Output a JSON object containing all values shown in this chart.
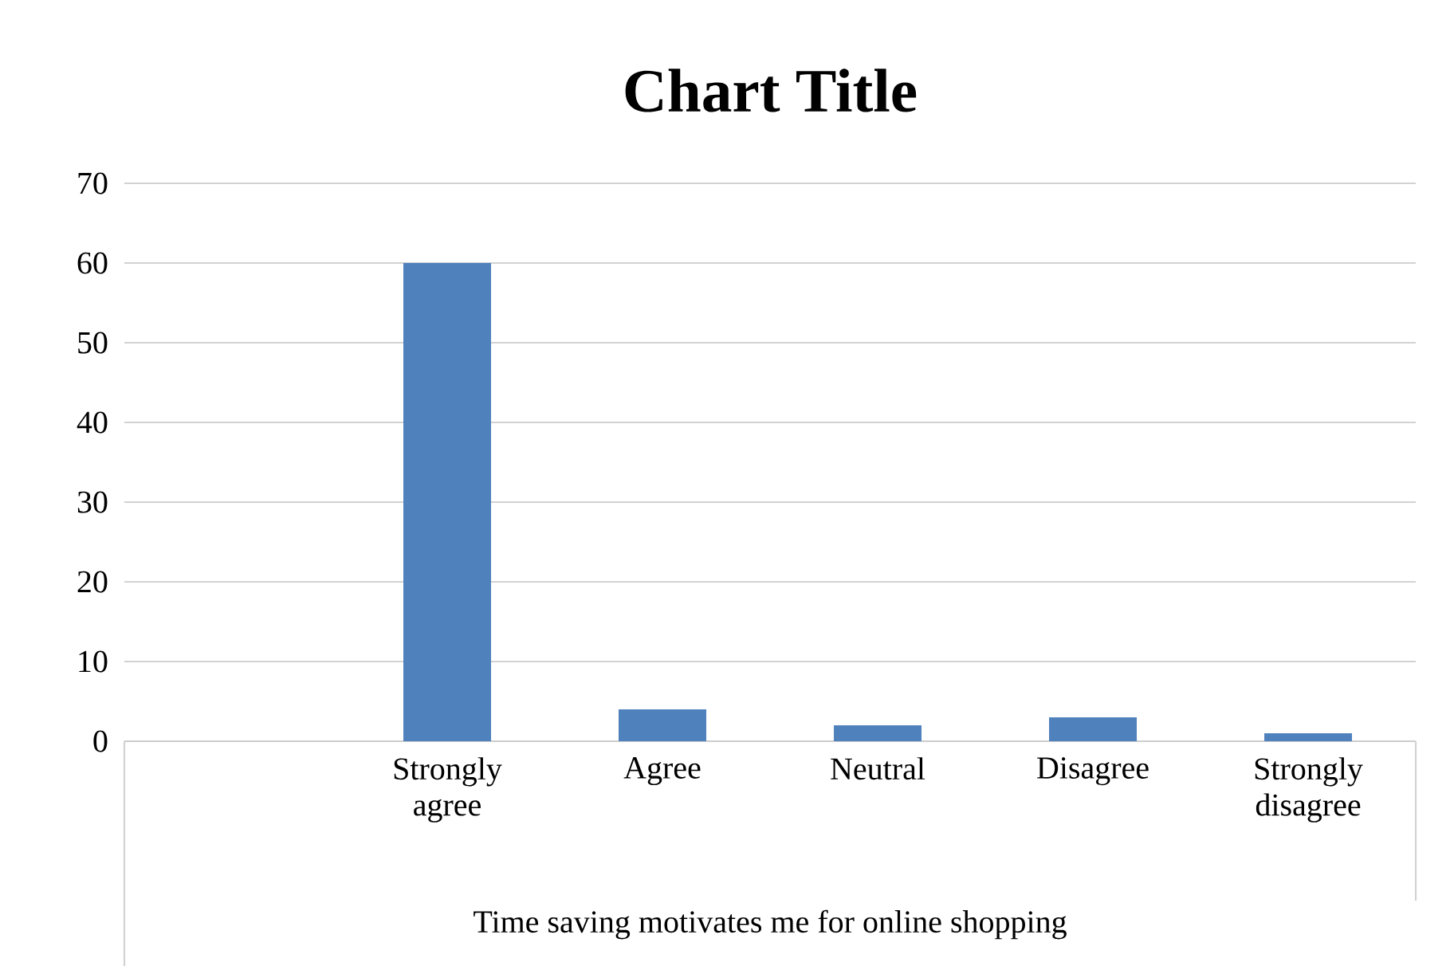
{
  "chart_data": {
    "type": "bar",
    "title": "Chart Title",
    "xlabel": "Time saving motivates me for online shopping",
    "categories": [
      null,
      "Strongly agree",
      "Agree",
      "Neutral",
      "Disagree",
      "Strongly disagree"
    ],
    "values": [
      null,
      60,
      4,
      2,
      3,
      1
    ],
    "color": "#4f81bd",
    "ylim": [
      0,
      70
    ],
    "yticks": [
      0,
      10,
      20,
      30,
      40,
      50,
      60,
      70
    ],
    "grid": "y"
  }
}
